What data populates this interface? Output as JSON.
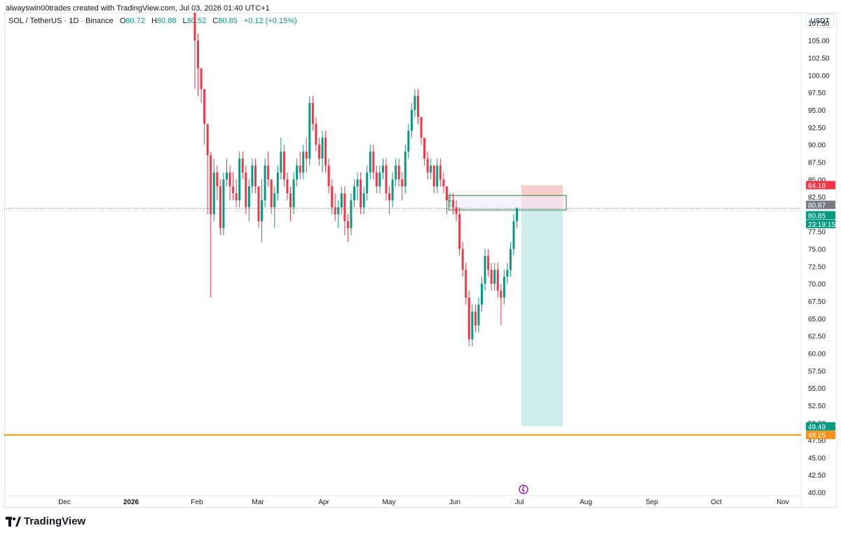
{
  "header": {
    "created_by": "alwayswin00trades created with TradingView.com, Jul 03, 2026 01:40 UTC+1"
  },
  "legend": {
    "symbol": "SOL / TetherUS · 1D · Binance",
    "open_label": "O",
    "open": "80.72",
    "high_label": "H",
    "high": "80.88",
    "low_label": "L",
    "low": "80.52",
    "close_label": "C",
    "close": "80.85",
    "change": "+0.12 (+0.15%)"
  },
  "price_axis": {
    "unit": "USDT",
    "ticks": [
      "107.50",
      "105.00",
      "102.50",
      "100.00",
      "97.50",
      "95.00",
      "92.50",
      "90.00",
      "87.50",
      "85.00",
      "82.50",
      "80.00",
      "77.50",
      "75.00",
      "72.50",
      "70.00",
      "67.50",
      "65.00",
      "62.50",
      "60.00",
      "57.50",
      "55.00",
      "52.50",
      "50.00",
      "47.50",
      "45.00",
      "42.50",
      "40.00"
    ],
    "labels": [
      {
        "text": "84.18",
        "value": 84.18,
        "color": "#f23645"
      },
      {
        "text": "80.87",
        "value": 81.35,
        "color": "#787b86"
      },
      {
        "text": "80.85",
        "value": 79.85,
        "color": "#089981"
      },
      {
        "text": "23:19:15",
        "value": 78.6,
        "color": "#089981"
      },
      {
        "text": "49.49",
        "value": 49.49,
        "color": "#089981"
      },
      {
        "text": "48.25",
        "value": 48.25,
        "color": "#f7931a"
      }
    ]
  },
  "time_axis": {
    "labels": [
      {
        "text": "Dec",
        "bold": false
      },
      {
        "text": "2026",
        "bold": true
      },
      {
        "text": "Feb",
        "bold": false
      },
      {
        "text": "Mar",
        "bold": false
      },
      {
        "text": "Apr",
        "bold": false
      },
      {
        "text": "May",
        "bold": false
      },
      {
        "text": "Jun",
        "bold": false
      },
      {
        "text": "Jul",
        "bold": false
      },
      {
        "text": "Aug",
        "bold": false
      },
      {
        "text": "Sep",
        "bold": false
      },
      {
        "text": "Oct",
        "bold": false
      },
      {
        "text": "Nov",
        "bold": false
      }
    ]
  },
  "chart_data": {
    "type": "candlestick",
    "ylim": [
      39.5,
      109
    ],
    "support_line": {
      "value": 48.25,
      "color": "#f7931a"
    },
    "current_price_line": 80.85,
    "colors": {
      "up": "#089981",
      "down": "#f23645",
      "target_zone": "#cdeceb",
      "stop_zone": "#f8cfcf",
      "box_fill": "#eeebfb",
      "box_border": "#2e7d32"
    },
    "short_position": {
      "entry": 80.85,
      "stop": 84.18,
      "target": 49.49
    },
    "supply_box": {
      "top": 82.7,
      "bottom": 80.6
    },
    "candles_ohlc_note": "approximate daily OHLC read from chart",
    "candles": [
      [
        109,
        109,
        98,
        105
      ],
      [
        105,
        106,
        97,
        101
      ],
      [
        101,
        101,
        96,
        98
      ],
      [
        98,
        98,
        90,
        93
      ],
      [
        93,
        93,
        80,
        88.5
      ],
      [
        88.5,
        89,
        68,
        80
      ],
      [
        80,
        88,
        79,
        86
      ],
      [
        86,
        87,
        82,
        84
      ],
      [
        84,
        85,
        77,
        78
      ],
      [
        78,
        86,
        77,
        85
      ],
      [
        85,
        88,
        84,
        86
      ],
      [
        86,
        87,
        82,
        84
      ],
      [
        84,
        86,
        82,
        83
      ],
      [
        83,
        85,
        81,
        82
      ],
      [
        82,
        89,
        81,
        88
      ],
      [
        88,
        89,
        85,
        86
      ],
      [
        86,
        87,
        80,
        81
      ],
      [
        81,
        85,
        79,
        84
      ],
      [
        84,
        88,
        83,
        87
      ],
      [
        87,
        88,
        83,
        84
      ],
      [
        84,
        84,
        78,
        79
      ],
      [
        79,
        85,
        76,
        82
      ],
      [
        82,
        88,
        81,
        87
      ],
      [
        87,
        89,
        84,
        85
      ],
      [
        85,
        85,
        80,
        81
      ],
      [
        81,
        84,
        78,
        83
      ],
      [
        83,
        87,
        82,
        86
      ],
      [
        86,
        91,
        85,
        89
      ],
      [
        89,
        90,
        84,
        85
      ],
      [
        85,
        86,
        82,
        83
      ],
      [
        83,
        84,
        79,
        81
      ],
      [
        81,
        86,
        80,
        85
      ],
      [
        85,
        88,
        84,
        87
      ],
      [
        87,
        89,
        85,
        86
      ],
      [
        86,
        90,
        85,
        89
      ],
      [
        89,
        91,
        86,
        88
      ],
      [
        88,
        97,
        87,
        96
      ],
      [
        96,
        97,
        92,
        93
      ],
      [
        93,
        94,
        89,
        90
      ],
      [
        90,
        91,
        87,
        88
      ],
      [
        88,
        92,
        86,
        91
      ],
      [
        91,
        92,
        86,
        87
      ],
      [
        87,
        88,
        83,
        84
      ],
      [
        84,
        85,
        80,
        81
      ],
      [
        81,
        83,
        79,
        80
      ],
      [
        80,
        82,
        78,
        81
      ],
      [
        81,
        84,
        80,
        83
      ],
      [
        83,
        84,
        77,
        79
      ],
      [
        79,
        80,
        76,
        78
      ],
      [
        78,
        83,
        77,
        82
      ],
      [
        82,
        85,
        81,
        84
      ],
      [
        84,
        86,
        82,
        85
      ],
      [
        85,
        86,
        80,
        81
      ],
      [
        81,
        84,
        80,
        83
      ],
      [
        83,
        87,
        82,
        86
      ],
      [
        86,
        90,
        85,
        89
      ],
      [
        89,
        90,
        85,
        86
      ],
      [
        86,
        87,
        83,
        84
      ],
      [
        84,
        87,
        83,
        86
      ],
      [
        86,
        88,
        85,
        87
      ],
      [
        87,
        88,
        82,
        83
      ],
      [
        83,
        84,
        80,
        82
      ],
      [
        82,
        86,
        81,
        85
      ],
      [
        85,
        88,
        84,
        87
      ],
      [
        87,
        88,
        84,
        85
      ],
      [
        85,
        86,
        82,
        84
      ],
      [
        84,
        90,
        83,
        89
      ],
      [
        89,
        93,
        88,
        92
      ],
      [
        92,
        96,
        91,
        95
      ],
      [
        95,
        98,
        94,
        97
      ],
      [
        97,
        98,
        93,
        94
      ],
      [
        94,
        94,
        90,
        91
      ],
      [
        91,
        91,
        87,
        88
      ],
      [
        88,
        89,
        85,
        86
      ],
      [
        86,
        88,
        85,
        87
      ],
      [
        87,
        87,
        83,
        84
      ],
      [
        84,
        88,
        83,
        87
      ],
      [
        87,
        88,
        84,
        85
      ],
      [
        85,
        86,
        83,
        84
      ],
      [
        84,
        84,
        80,
        82
      ],
      [
        82,
        83,
        81,
        82
      ],
      [
        82,
        83,
        80,
        81
      ],
      [
        81,
        82,
        79,
        80
      ],
      [
        80,
        81,
        74,
        75
      ],
      [
        75,
        76,
        71,
        72
      ],
      [
        72,
        73,
        67,
        68
      ],
      [
        68,
        69,
        61,
        62
      ],
      [
        62,
        67,
        61,
        66
      ],
      [
        66,
        67,
        63,
        64
      ],
      [
        64,
        68,
        63,
        67
      ],
      [
        67,
        71,
        66,
        70
      ],
      [
        70,
        75,
        69,
        74
      ],
      [
        74,
        75,
        71,
        72
      ],
      [
        72,
        73,
        69,
        70
      ],
      [
        70,
        73,
        69,
        72
      ],
      [
        72,
        73,
        68,
        69
      ],
      [
        69,
        70,
        64,
        68
      ],
      [
        68,
        72,
        67,
        71
      ],
      [
        71,
        73,
        70,
        72
      ],
      [
        72,
        76,
        71,
        75
      ],
      [
        75,
        80,
        74,
        79
      ],
      [
        79,
        81,
        78,
        80.85
      ]
    ]
  },
  "footer": {
    "brand": "TradingView"
  }
}
